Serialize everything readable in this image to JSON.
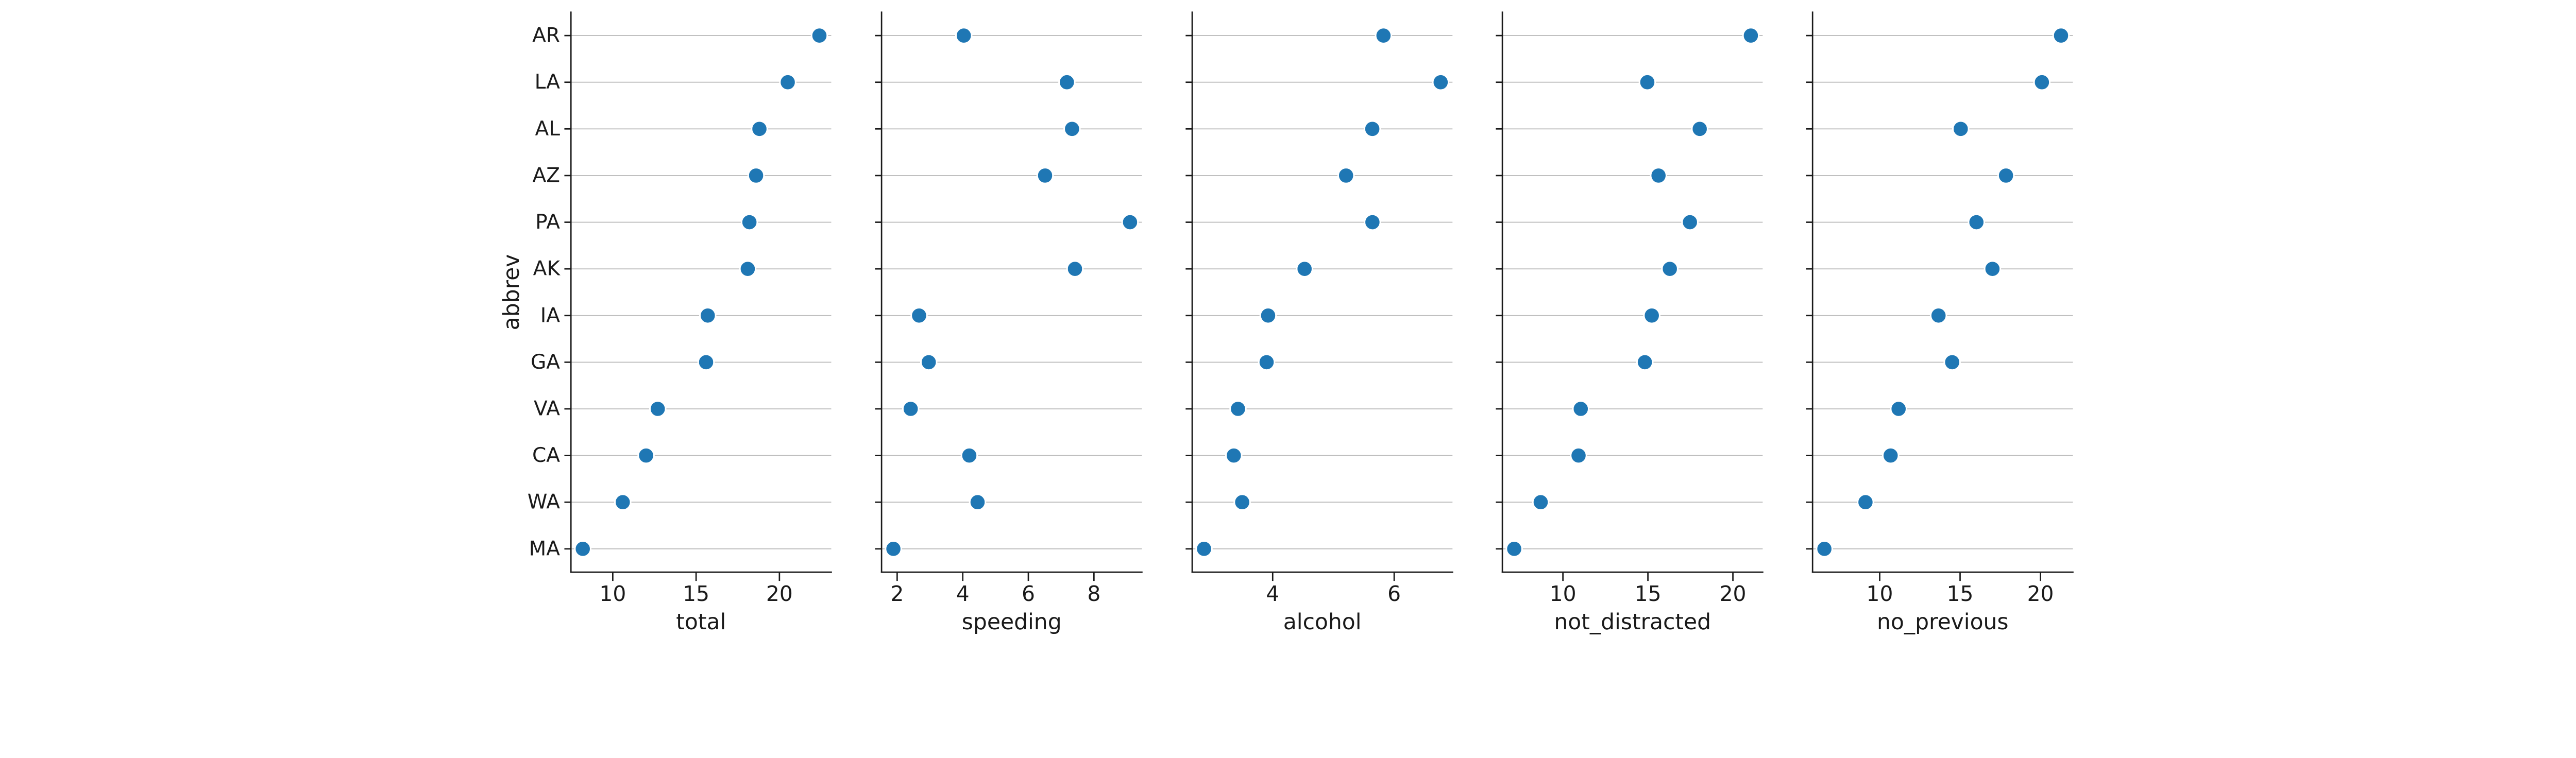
{
  "chart_data": {
    "type": "scatter",
    "subtype": "pairgrid-dot-plot",
    "orientation": "horizontal",
    "title": "",
    "ylabel": "abbrev",
    "grid": "horizontal-only",
    "legend": null,
    "categories": [
      "AR",
      "LA",
      "AL",
      "AZ",
      "PA",
      "AK",
      "IA",
      "GA",
      "VA",
      "CA",
      "WA",
      "MA"
    ],
    "panels": [
      {
        "xlabel": "total",
        "ticks": [
          10,
          15,
          20
        ],
        "xlim": [
          7.49,
          23.11
        ],
        "values": [
          22.4,
          20.5,
          18.8,
          18.6,
          18.2,
          18.1,
          15.7,
          15.6,
          12.7,
          12.0,
          10.6,
          8.2
        ]
      },
      {
        "xlabel": "speeding",
        "ticks": [
          2,
          4,
          6,
          8
        ],
        "xlim": [
          1.525,
          9.461
        ],
        "values": [
          4.032,
          7.175,
          7.332,
          6.51,
          9.1,
          7.421,
          2.669,
          2.964,
          2.413,
          4.2,
          4.452,
          1.886
        ]
      },
      {
        "xlabel": "alcohol",
        "ticks": [
          4,
          6
        ],
        "xlim": [
          2.675,
          6.96
        ],
        "values": [
          5.824,
          6.765,
          5.64,
          5.208,
          5.642,
          4.525,
          3.925,
          3.9,
          3.429,
          3.36,
          3.498,
          2.87
        ]
      },
      {
        "xlabel": "not_distracted",
        "ticks": [
          10,
          15,
          20
        ],
        "xlim": [
          6.438,
          21.752
        ],
        "values": [
          21.056,
          14.965,
          18.048,
          15.624,
          17.472,
          16.29,
          15.229,
          14.82,
          11.049,
          10.92,
          8.692,
          7.134
        ]
      },
      {
        "xlabel": "no_previous",
        "ticks": [
          10,
          15,
          20
        ],
        "xlim": [
          5.824,
          22.016
        ],
        "values": [
          21.28,
          20.09,
          15.04,
          17.856,
          16.016,
          17.014,
          13.659,
          14.508,
          11.176,
          10.68,
          9.116,
          6.56
        ]
      }
    ],
    "colors": {
      "dot": "#1f77b4",
      "dot_edge": "#ffffff",
      "grid": "#bdbdbd",
      "spine": "#1a1a1a",
      "text": "#1a1a1a",
      "background": "#ffffff"
    }
  }
}
